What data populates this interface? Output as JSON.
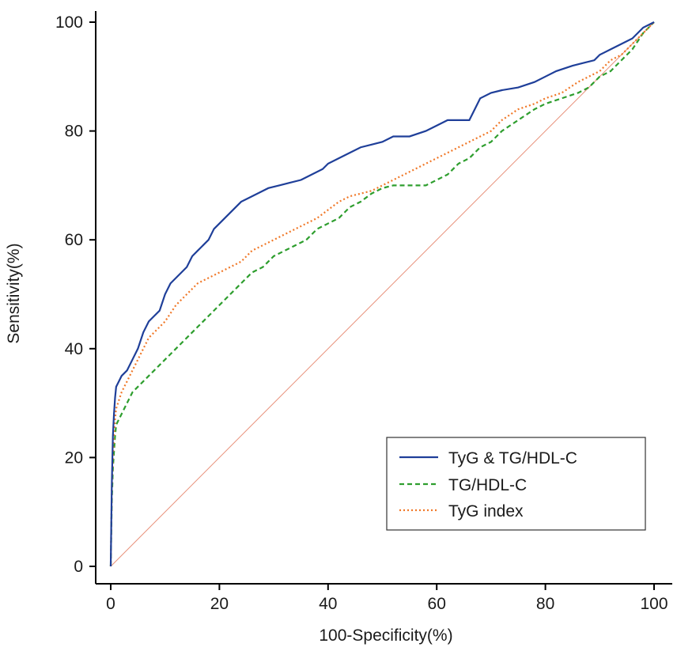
{
  "chart_data": {
    "type": "line",
    "title": "",
    "xlabel": "100-Specificity(%)",
    "ylabel": "Sensitivity(%)",
    "xlim": [
      0,
      100
    ],
    "ylim": [
      0,
      100
    ],
    "xticks": [
      0,
      20,
      40,
      60,
      80,
      100
    ],
    "yticks": [
      0,
      20,
      40,
      60,
      80,
      100
    ],
    "legend_position": "bottom-right",
    "reference_line": {
      "name": "reference",
      "x": [
        0,
        100
      ],
      "y": [
        0,
        100
      ],
      "color": "#e8907a"
    },
    "series": [
      {
        "name": "TyG & TG/HDL-C",
        "style": "solid",
        "color": "#1f3f99",
        "x": [
          0,
          0.2,
          0.4,
          0.6,
          0.8,
          1,
          1.5,
          2,
          3,
          4,
          5,
          6,
          7,
          8,
          9,
          10,
          11,
          12,
          13,
          14,
          15,
          16,
          17,
          18,
          19,
          20,
          21,
          22,
          23,
          24,
          25,
          27,
          29,
          31,
          33,
          35,
          37,
          39,
          40,
          42,
          44,
          46,
          48,
          50,
          52,
          55,
          58,
          60,
          62,
          64,
          65,
          66,
          67,
          68,
          70,
          72,
          75,
          78,
          80,
          82,
          85,
          87,
          89,
          90,
          92,
          94,
          96,
          97,
          98,
          100
        ],
        "y": [
          0,
          15,
          24,
          28,
          31,
          33,
          34,
          35,
          36,
          38,
          40,
          43,
          45,
          46,
          47,
          50,
          52,
          53,
          54,
          55,
          57,
          58,
          59,
          60,
          62,
          63,
          64,
          65,
          66,
          67,
          67.5,
          68.5,
          69.5,
          70,
          70.5,
          71,
          72,
          73,
          74,
          75,
          76,
          77,
          77.5,
          78,
          79,
          79,
          80,
          81,
          82,
          82,
          82,
          82,
          84,
          86,
          87,
          87.5,
          88,
          89,
          90,
          91,
          92,
          92.5,
          93,
          94,
          95,
          96,
          97,
          98,
          99,
          100
        ]
      },
      {
        "name": "TG/HDL-C",
        "style": "dashed",
        "color": "#2e9e2e",
        "x": [
          0,
          0.2,
          0.4,
          0.6,
          0.8,
          1,
          2,
          3,
          4,
          5,
          6,
          7,
          8,
          9,
          10,
          12,
          14,
          16,
          18,
          20,
          22,
          24,
          26,
          28,
          30,
          32,
          34,
          36,
          38,
          40,
          42,
          44,
          46,
          48,
          50,
          52,
          54,
          56,
          58,
          60,
          62,
          64,
          66,
          68,
          70,
          72,
          75,
          78,
          80,
          83,
          86,
          88,
          90,
          92,
          94,
          96,
          98,
          100
        ],
        "y": [
          0,
          12,
          18,
          21,
          24,
          26,
          28,
          30,
          32,
          33,
          34,
          35,
          36,
          37,
          38,
          40,
          42,
          44,
          46,
          48,
          50,
          52,
          54,
          55,
          57,
          58,
          59,
          60,
          62,
          63,
          64,
          66,
          67,
          68.5,
          69.5,
          70,
          70,
          70,
          70,
          71,
          72,
          74,
          75,
          77,
          78,
          80,
          82,
          84,
          85,
          86,
          87,
          88,
          90,
          91,
          93,
          95,
          98,
          100
        ]
      },
      {
        "name": "TyG index",
        "style": "dotted",
        "color": "#f07828",
        "x": [
          0,
          0.2,
          0.4,
          0.6,
          0.8,
          1,
          2,
          3,
          4,
          5,
          6,
          7,
          8,
          9,
          10,
          12,
          14,
          16,
          18,
          20,
          22,
          24,
          26,
          28,
          30,
          32,
          34,
          36,
          38,
          40,
          42,
          44,
          46,
          48,
          50,
          52,
          54,
          56,
          58,
          60,
          62,
          64,
          66,
          68,
          70,
          72,
          75,
          78,
          80,
          83,
          86,
          88,
          90,
          92,
          94,
          96,
          98,
          100
        ],
        "y": [
          0,
          14,
          20,
          24,
          27,
          29,
          32,
          34,
          36,
          38,
          40,
          42,
          43,
          44,
          45,
          48,
          50,
          52,
          53,
          54,
          55,
          56,
          58,
          59,
          60,
          61,
          62,
          63,
          64,
          65.5,
          67,
          68,
          68.5,
          69,
          70,
          71,
          72,
          73,
          74,
          75,
          76,
          77,
          78,
          79,
          80,
          82,
          84,
          85,
          86,
          87,
          89,
          90,
          91,
          93,
          94,
          96,
          98,
          100
        ]
      }
    ]
  }
}
